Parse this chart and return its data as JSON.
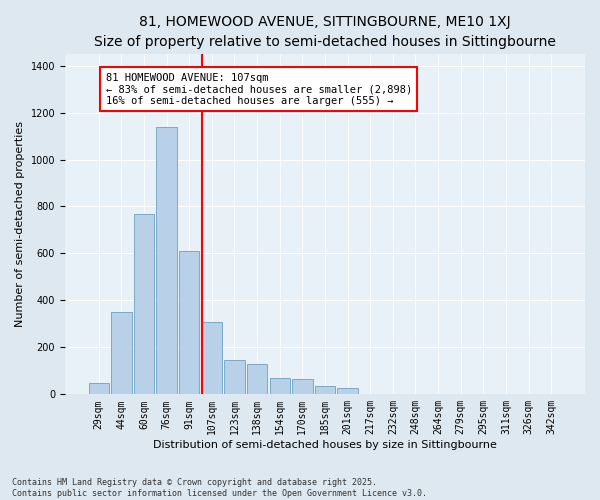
{
  "title": "81, HOMEWOOD AVENUE, SITTINGBOURNE, ME10 1XJ",
  "subtitle": "Size of property relative to semi-detached houses in Sittingbourne",
  "xlabel": "Distribution of semi-detached houses by size in Sittingbourne",
  "ylabel": "Number of semi-detached properties",
  "categories": [
    "29sqm",
    "44sqm",
    "60sqm",
    "76sqm",
    "91sqm",
    "107sqm",
    "123sqm",
    "138sqm",
    "154sqm",
    "170sqm",
    "185sqm",
    "201sqm",
    "217sqm",
    "232sqm",
    "248sqm",
    "264sqm",
    "279sqm",
    "295sqm",
    "311sqm",
    "326sqm",
    "342sqm"
  ],
  "bar_heights": [
    50,
    350,
    770,
    1140,
    610,
    310,
    145,
    130,
    70,
    65,
    35,
    25,
    0,
    0,
    0,
    0,
    0,
    0,
    0,
    0,
    0
  ],
  "bar_color": "#b8d0e8",
  "bar_edge_color": "#7aaac8",
  "red_line_index": 5,
  "annotation_title": "81 HOMEWOOD AVENUE: 107sqm",
  "annotation_line1": "← 83% of semi-detached houses are smaller (2,898)",
  "annotation_line2": "16% of semi-detached houses are larger (555) →",
  "ylim": [
    0,
    1450
  ],
  "yticks": [
    0,
    200,
    400,
    600,
    800,
    1000,
    1200,
    1400
  ],
  "footer": "Contains HM Land Registry data © Crown copyright and database right 2025.\nContains public sector information licensed under the Open Government Licence v3.0.",
  "bg_color": "#dde8f0",
  "plot_bg_color": "#e8f0f8",
  "title_fontsize": 10,
  "subtitle_fontsize": 9,
  "axis_label_fontsize": 8,
  "tick_fontsize": 7,
  "annotation_fontsize": 7.5,
  "footer_fontsize": 6
}
